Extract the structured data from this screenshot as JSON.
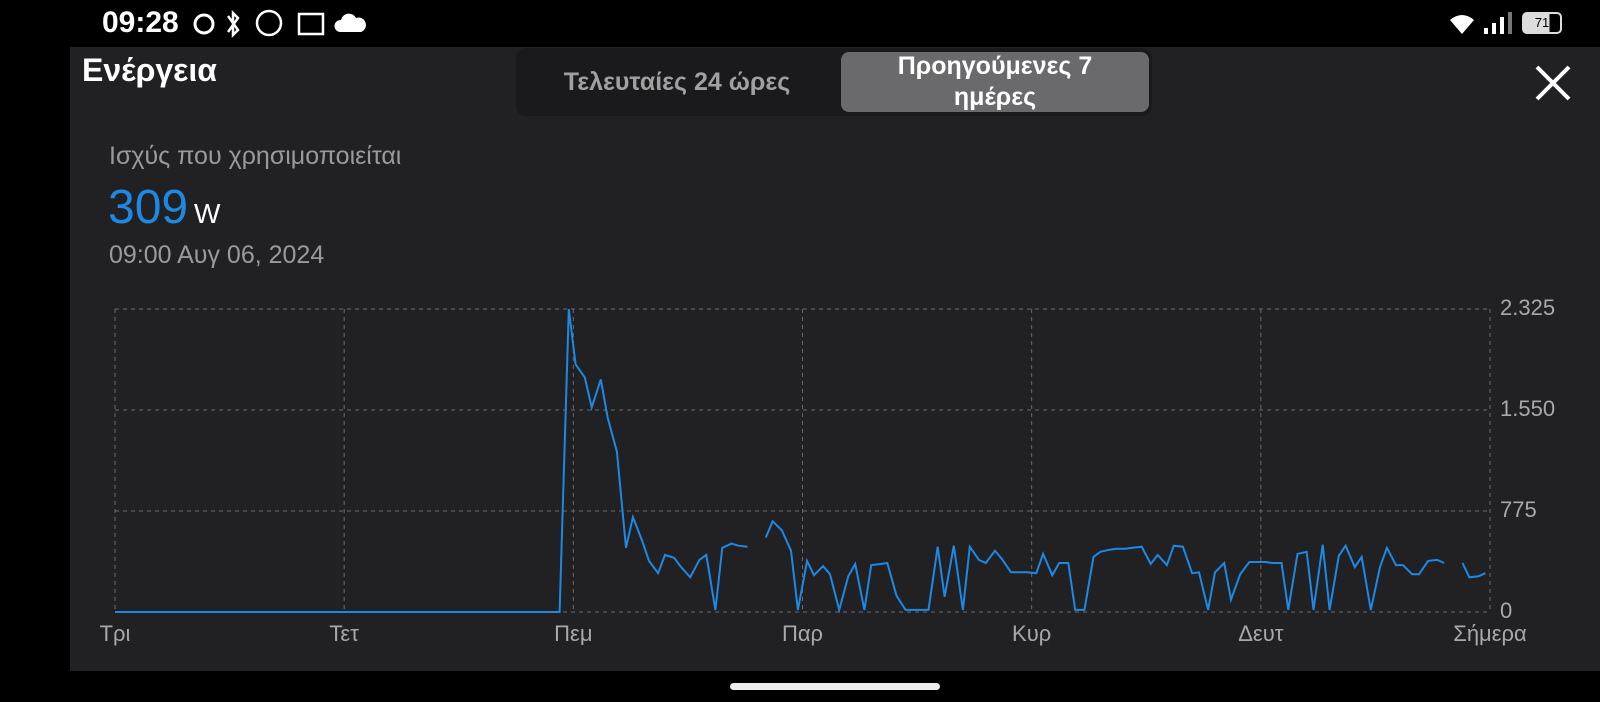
{
  "status_bar": {
    "time": "09:28",
    "battery": "71"
  },
  "header": {
    "title": "Ενέργεια",
    "tabs": [
      "Τελευταίες 24 ώρες",
      "Προηγούμενες 7 ημέρες"
    ]
  },
  "summary": {
    "label": "Ισχύς που χρησιμοποιείται",
    "value": 309,
    "unit": "W",
    "timestamp": "09:00  Αυγ 06, 2024"
  },
  "chart_data": {
    "type": "line",
    "color": "#1e88e5",
    "grid": true,
    "xlim": [
      0,
      6
    ],
    "xticks": [
      {
        "value": 0,
        "label": "Τρι"
      },
      {
        "value": 1,
        "label": "Τετ"
      },
      {
        "value": 2,
        "label": "Πεμ"
      },
      {
        "value": 3,
        "label": "Παρ"
      },
      {
        "value": 4,
        "label": "Κυρ"
      },
      {
        "value": 5,
        "label": "Δευτ"
      },
      {
        "value": 6,
        "label": "Σήμερα"
      }
    ],
    "ylim": [
      0,
      2325
    ],
    "yticks": [
      0,
      775,
      {
        "value": 1550,
        "label": "1.550"
      },
      {
        "value": 2325,
        "label": "2.325"
      }
    ],
    "x": [
      0,
      1.94,
      1.98,
      2.01,
      2.05,
      2.08,
      2.12,
      2.15,
      2.19,
      2.23,
      2.26,
      2.3,
      2.33,
      2.37,
      2.4,
      2.44,
      2.47,
      2.51,
      2.55,
      2.58,
      2.62,
      2.65,
      2.69,
      2.72,
      2.76,
      2.8,
      2.84,
      2.87,
      2.91,
      2.95,
      2.98,
      3.02,
      3.05,
      3.09,
      3.12,
      3.16,
      3.2,
      3.23,
      3.27,
      3.3,
      3.34,
      3.37,
      3.41,
      3.45,
      3.48,
      3.52,
      3.55,
      3.59,
      3.62,
      3.66,
      3.7,
      3.73,
      3.77,
      3.8,
      3.84,
      3.87,
      3.91,
      3.94,
      3.98,
      4.02,
      4.05,
      4.09,
      4.12,
      4.16,
      4.19,
      4.23,
      4.27,
      4.3,
      4.34,
      4.37,
      4.41,
      4.44,
      4.48,
      4.52,
      4.55,
      4.59,
      4.62,
      4.66,
      4.7,
      4.73,
      4.77,
      4.8,
      4.84,
      4.87,
      4.91,
      4.95,
      4.98,
      5.02,
      5.05,
      5.09,
      5.12,
      5.16,
      5.2,
      5.23,
      5.27,
      5.3,
      5.34,
      5.37,
      5.41,
      5.44,
      5.48,
      5.52,
      5.55,
      5.59,
      5.62,
      5.66,
      5.69,
      5.73,
      5.77,
      5.8,
      5.84,
      5.88,
      5.91,
      5.95,
      5.98
    ],
    "values": [
      0,
      0,
      2325,
      1900,
      1800,
      1570,
      1785,
      1490,
      1230,
      493,
      728,
      548,
      392,
      298,
      438,
      415,
      345,
      266,
      400,
      438,
      16,
      493,
      525,
      509,
      500,
      null,
      572,
      697,
      626,
      470,
      16,
      392,
      282,
      352,
      290,
      16,
      274,
      368,
      16,
      360,
      368,
      376,
      125,
      16,
      16,
      16,
      16,
      501,
      117,
      509,
      16,
      501,
      400,
      376,
      470,
      407,
      305,
      305,
      305,
      298,
      446,
      282,
      376,
      376,
      16,
      16,
      423,
      462,
      478,
      485,
      485,
      493,
      501,
      368,
      438,
      360,
      509,
      501,
      298,
      305,
      16,
      305,
      376,
      94,
      290,
      384,
      384,
      384,
      376,
      376,
      16,
      446,
      462,
      16,
      517,
      16,
      431,
      509,
      345,
      423,
      16,
      345,
      493,
      360,
      360,
      290,
      290,
      392,
      400,
      376,
      null,
      376,
      266,
      274,
      298
    ]
  }
}
